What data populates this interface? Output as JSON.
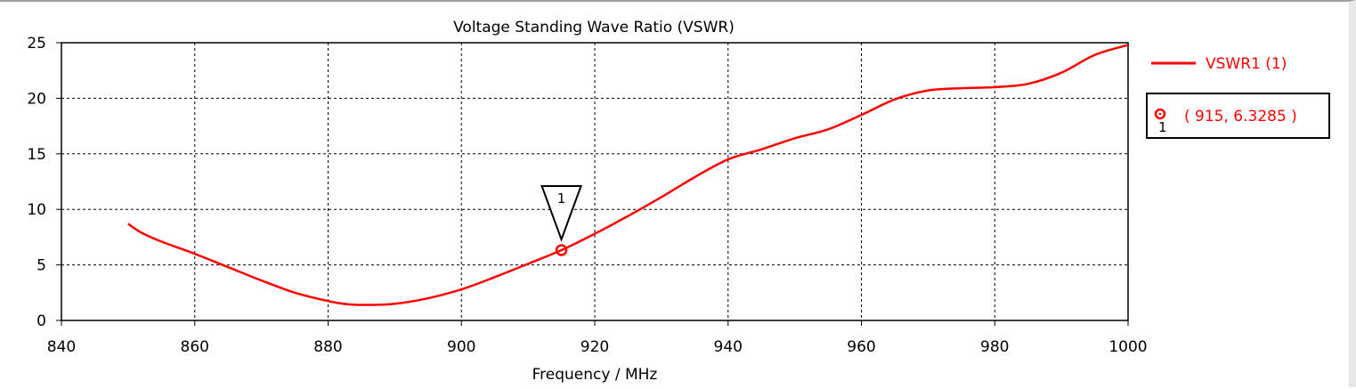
{
  "chart_data": {
    "type": "line",
    "title": "Voltage Standing Wave Ratio (VSWR)",
    "xlabel": "Frequency / MHz",
    "ylabel": "",
    "xlim": [
      840,
      1000
    ],
    "ylim": [
      0,
      25
    ],
    "x_ticks": [
      840,
      860,
      880,
      900,
      920,
      940,
      960,
      980,
      1000
    ],
    "y_ticks": [
      0,
      5,
      10,
      15,
      20,
      25
    ],
    "grid": true,
    "legend_position": "right",
    "series": [
      {
        "name": "VSWR1 (1)",
        "color": "#ff0000",
        "x": [
          850,
          852,
          855,
          860,
          865,
          870,
          875,
          880,
          883,
          886,
          890,
          895,
          900,
          905,
          910,
          915,
          920,
          925,
          930,
          935,
          940,
          945,
          950,
          955,
          960,
          965,
          970,
          975,
          980,
          985,
          990,
          995,
          1000
        ],
        "y": [
          8.7,
          7.9,
          7.1,
          6.0,
          4.8,
          3.6,
          2.5,
          1.75,
          1.45,
          1.4,
          1.5,
          2.0,
          2.8,
          3.9,
          5.1,
          6.3285,
          7.8,
          9.4,
          11.1,
          12.9,
          14.5,
          15.4,
          16.4,
          17.2,
          18.5,
          19.9,
          20.7,
          20.9,
          21.0,
          21.3,
          22.3,
          23.9,
          24.8
        ]
      }
    ],
    "marker": {
      "id": "1",
      "x": 915,
      "y": 6.3285,
      "label": "( 915, 6.3285 )"
    }
  }
}
